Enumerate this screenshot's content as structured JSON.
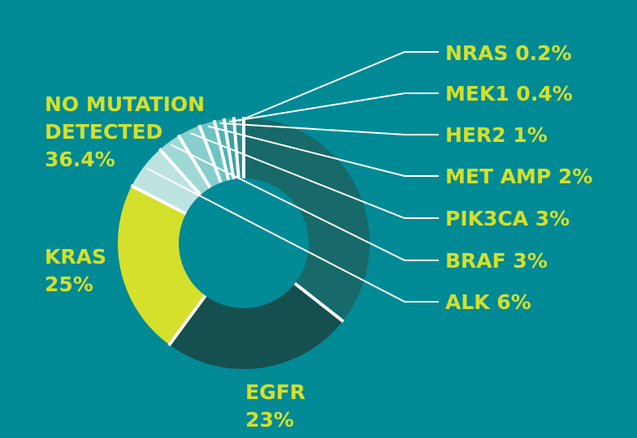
{
  "chart_data": {
    "type": "pie",
    "variant": "donut",
    "background": "#008a96",
    "label_color": "#d4e02b",
    "separator_color": "#ffffff",
    "slices": [
      {
        "label_lines": [
          "NO MUTATION",
          "DETECTED",
          "36.4%"
        ],
        "name": "NO MUTATION DETECTED",
        "value": 36.4,
        "color": "#17696a"
      },
      {
        "label_lines": [
          "NRAS 0.2%"
        ],
        "name": "NRAS",
        "value": 0.2,
        "color": "#2a8f96"
      },
      {
        "label_lines": [
          "MEK1 0.4%"
        ],
        "name": "MEK1",
        "value": 0.4,
        "color": "#3aa0a5"
      },
      {
        "label_lines": [
          "HER2 1%"
        ],
        "name": "HER2",
        "value": 1,
        "color": "#4fb3b4"
      },
      {
        "label_lines": [
          "MET AMP 2%"
        ],
        "name": "MET AMP",
        "value": 2,
        "color": "#6cc3c3"
      },
      {
        "label_lines": [
          "PIK3CA 3%"
        ],
        "name": "PIK3CA",
        "value": 3,
        "color": "#86cfce"
      },
      {
        "label_lines": [
          "BRAF 3%"
        ],
        "name": "BRAF",
        "value": 3,
        "color": "#9fd8d6"
      },
      {
        "label_lines": [
          "ALK 6%"
        ],
        "name": "ALK",
        "value": 6,
        "color": "#bde3e1"
      },
      {
        "label_lines": [
          "EGFR",
          "23%"
        ],
        "name": "EGFR",
        "value": 23,
        "color": "#d4e02b"
      },
      {
        "label_lines": [
          "KRAS",
          "25%"
        ],
        "name": "KRAS",
        "value": 25,
        "color": "#154f4f"
      }
    ]
  }
}
